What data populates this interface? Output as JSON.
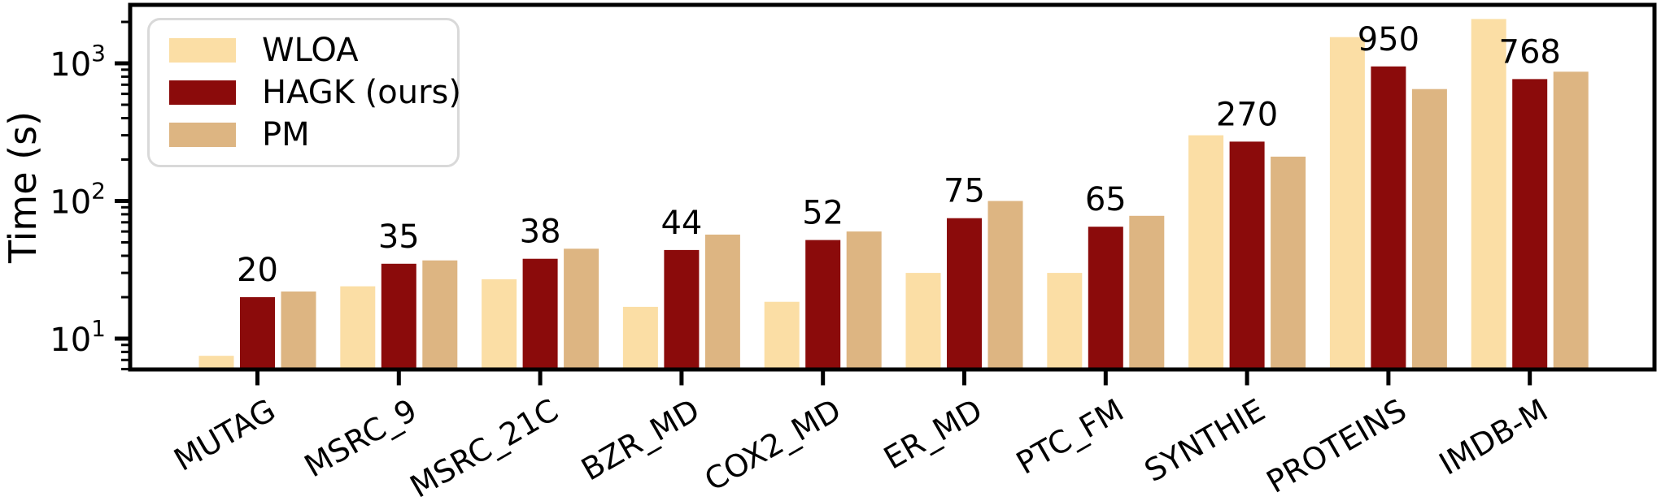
{
  "chart_data": {
    "type": "bar",
    "variant": "grouped",
    "title": "",
    "xlabel": "",
    "ylabel": "Time (s)",
    "y_scale": "log",
    "ylim": [
      5.97,
      2660
    ],
    "grid": false,
    "background_color": "#ffffff",
    "axis_color": "#000000",
    "legend": {
      "position": "upper-left",
      "border_color": "#d9d9d9"
    },
    "categories": [
      "MUTAG",
      "MSRC_9",
      "MSRC_21C",
      "BZR_MD",
      "COX2_MD",
      "ER_MD",
      "PTC_FM",
      "SYNTHIE",
      "PROTEINS",
      "IMDB-M"
    ],
    "series": [
      {
        "name": "WLOA",
        "color": "#FBDEA5",
        "values": [
          7.5,
          24,
          27,
          17,
          18.5,
          30,
          30,
          300,
          1550,
          2100
        ]
      },
      {
        "name": "HAGK (ours)",
        "color": "#8B0B0B",
        "values": [
          20,
          35,
          38,
          44,
          52,
          75,
          65,
          270,
          950,
          768
        ]
      },
      {
        "name": "PM",
        "color": "#DDB582",
        "values": [
          22,
          37,
          45,
          57,
          60,
          100,
          78,
          210,
          650,
          870
        ]
      }
    ],
    "bar_labels": {
      "annotated_series": "HAGK (ours)",
      "values": [
        "20",
        "35",
        "38",
        "44",
        "52",
        "75",
        "65",
        "270",
        "950",
        "768"
      ]
    },
    "y_ticks": [
      {
        "value": 10,
        "base": "10",
        "exp": "1"
      },
      {
        "value": 100,
        "base": "10",
        "exp": "2"
      },
      {
        "value": 1000,
        "base": "10",
        "exp": "3"
      }
    ]
  }
}
